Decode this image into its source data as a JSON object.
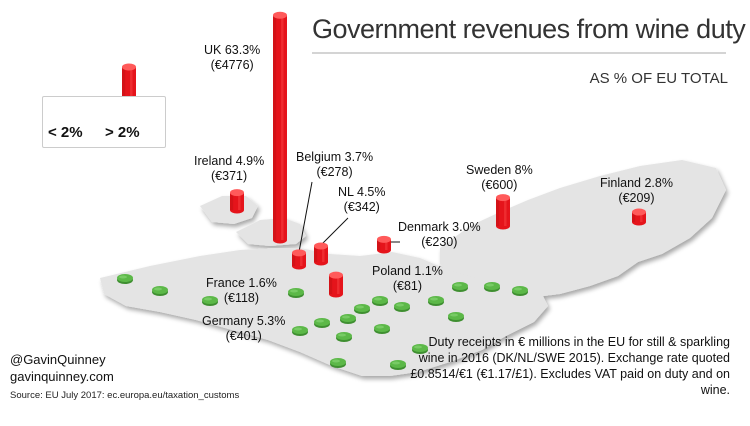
{
  "title": "Government revenues from wine duty",
  "subtitle": "AS % OF EU TOTAL",
  "legend": {
    "low_label": "< 2%",
    "high_label": "> 2%"
  },
  "colors": {
    "high": "#e5141b",
    "low": "#5cb848",
    "land": "#e4e4e4"
  },
  "chart_data": {
    "type": "bar",
    "title": "Government revenues from wine duty",
    "subtitle": "AS % OF EU TOTAL",
    "unit": "€ millions",
    "legend": [
      "< 2%",
      "> 2%"
    ],
    "categories": [
      "UK",
      "Ireland",
      "Belgium",
      "NL",
      "Denmark",
      "Sweden",
      "Finland",
      "France",
      "Germany",
      "Poland"
    ],
    "series": [
      {
        "values": [
          63.3,
          4.9,
          3.7,
          4.5,
          3.0,
          8,
          2.8,
          1.6,
          5.3,
          1.1
        ]
      },
      {
        "values": [
          4776,
          371,
          278,
          342,
          230,
          600,
          209,
          118,
          401,
          81
        ]
      }
    ],
    "labels": [
      {
        "name": "UK 63.3%",
        "amount": "(€4776)"
      },
      {
        "name": "Ireland 4.9%",
        "amount": "(€371)"
      },
      {
        "name": "Belgium 3.7%",
        "amount": "(€278)"
      },
      {
        "name": "NL 4.5%",
        "amount": "(€342)"
      },
      {
        "name": "Denmark 3.0%",
        "amount": "(€230)"
      },
      {
        "name": "Sweden 8%",
        "amount": "(€600)"
      },
      {
        "name": "Finland 2.8%",
        "amount": "(€209)"
      },
      {
        "name": "France 1.6%",
        "amount": "(€118)"
      },
      {
        "name": "Germany 5.3%",
        "amount": "(€401)"
      },
      {
        "name": "Poland 1.1%",
        "amount": "(€81)"
      }
    ]
  },
  "credits": {
    "handle": "@GavinQuinney",
    "site": "gavinquinney.com"
  },
  "source": "Source: EU July 2017: ec.europa.eu/taxation_customs",
  "note": "Duty receipts in € millions in the EU for still & sparkling wine in 2016 (DK/NL/SWE 2015). Exchange rate quoted £0.8514/€1 (€1.17/£1). Excludes VAT paid on duty and on wine."
}
